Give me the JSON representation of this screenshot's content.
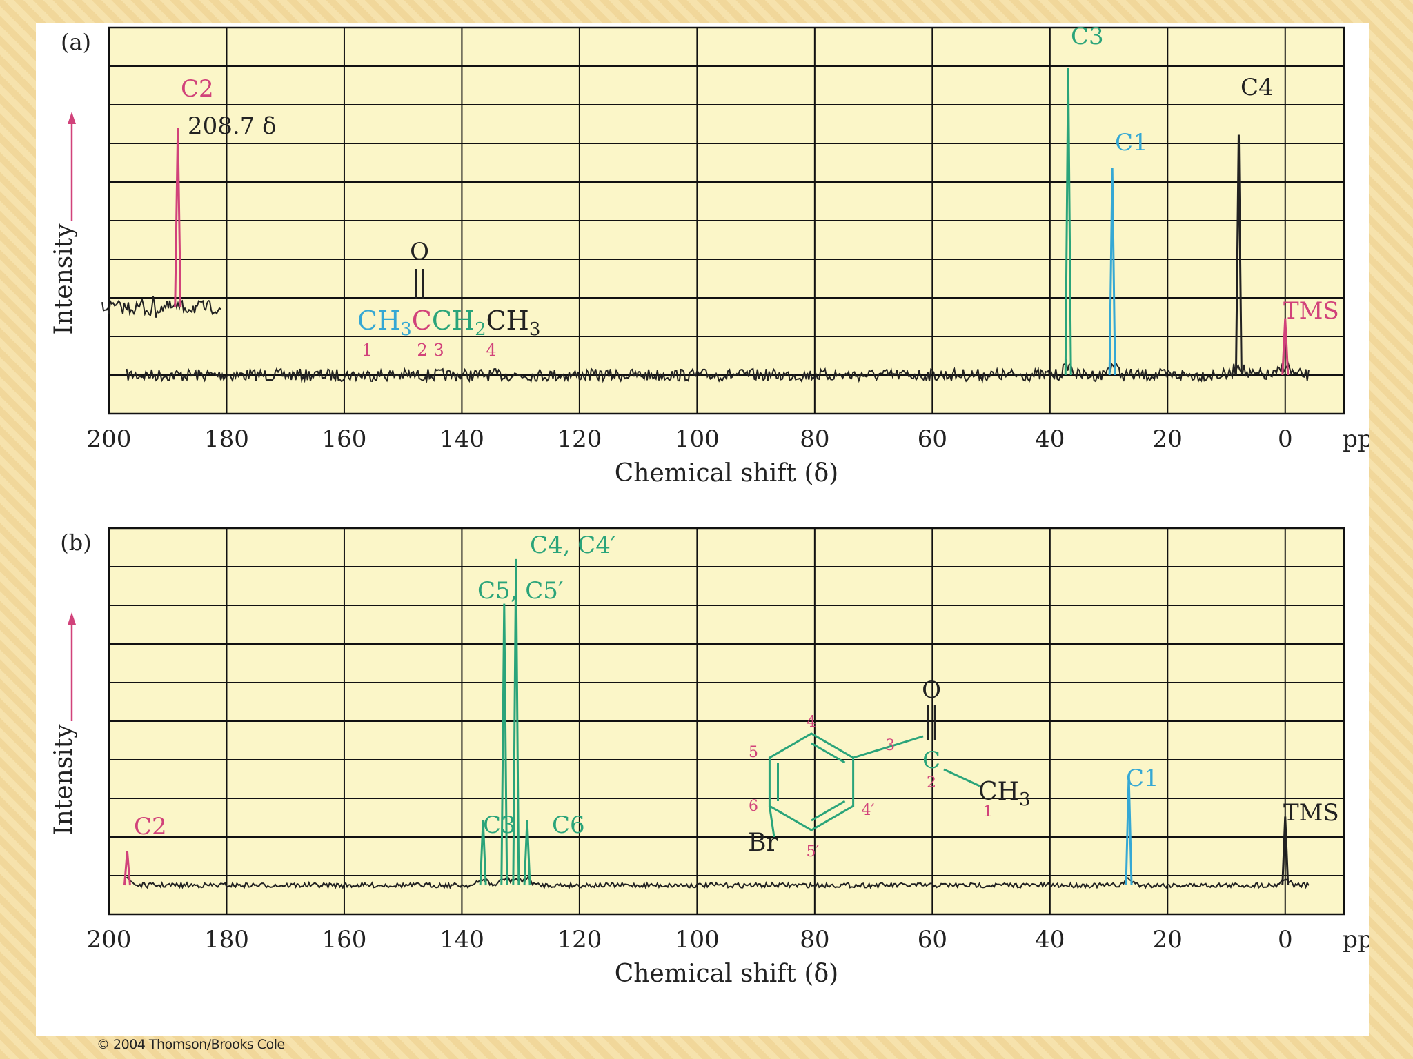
{
  "copyright": "© 2004 Thomson/Brooks Cole",
  "colors": {
    "plot_bg": "#fbf6c8",
    "grid": "#111111",
    "c_pink": "#d1427a",
    "c_cyan": "#35a8d4",
    "c_green": "#2aa47a",
    "trace": "#222222"
  },
  "chart_data": [
    {
      "panel": "(a)",
      "type": "line",
      "xlabel": "Chemical shift (δ)",
      "ylabel": "Intensity",
      "xunit": "ppm",
      "xlim": [
        200,
        -10
      ],
      "xticks": [
        200,
        180,
        160,
        140,
        120,
        100,
        80,
        60,
        40,
        20,
        0
      ],
      "grid": true,
      "peaks": [
        {
          "label": "C2",
          "shift": 208.7,
          "intensity": 0.74,
          "color": "#d1427a",
          "annotation": "208.7 δ",
          "inset": true
        },
        {
          "label": "C3",
          "shift": 36.9,
          "intensity": 0.92,
          "color": "#2aa47a"
        },
        {
          "label": "C1",
          "shift": 29.4,
          "intensity": 0.62,
          "color": "#35a8d4"
        },
        {
          "label": "C4",
          "shift": 7.9,
          "intensity": 0.72,
          "color": "#222222"
        },
        {
          "label": "TMS",
          "shift": 0,
          "intensity": 0.17,
          "color": "#d1427a"
        }
      ],
      "structure": {
        "top": "O",
        "formula_parts": [
          {
            "text": "CH",
            "color": "#35a8d4"
          },
          {
            "text": "3",
            "sub": true,
            "color": "#35a8d4"
          },
          {
            "text": "C",
            "color": "#d1427a"
          },
          {
            "text": "CH",
            "color": "#2aa47a"
          },
          {
            "text": "2",
            "sub": true,
            "color": "#2aa47a"
          },
          {
            "text": "CH",
            "color": "#222222"
          },
          {
            "text": "3",
            "sub": true,
            "color": "#222222"
          }
        ],
        "numbers": [
          "1",
          "2",
          "3",
          "4"
        ]
      }
    },
    {
      "panel": "(b)",
      "type": "line",
      "xlabel": "Chemical shift (δ)",
      "ylabel": "Intensity",
      "xunit": "ppm",
      "xlim": [
        200,
        -10
      ],
      "xticks": [
        200,
        180,
        160,
        140,
        120,
        100,
        80,
        60,
        40,
        20,
        0
      ],
      "grid": true,
      "peaks": [
        {
          "label": "C2",
          "shift": 196.9,
          "intensity": 0.1,
          "color": "#d1427a"
        },
        {
          "label": "C3",
          "shift": 136.4,
          "intensity": 0.19,
          "color": "#2aa47a"
        },
        {
          "label": "C5, C5′",
          "shift": 132.8,
          "intensity": 0.82,
          "color": "#2aa47a"
        },
        {
          "label": "C4, C4′",
          "shift": 130.8,
          "intensity": 0.95,
          "color": "#2aa47a"
        },
        {
          "label": "C6",
          "shift": 128.9,
          "intensity": 0.19,
          "color": "#2aa47a"
        },
        {
          "label": "C1",
          "shift": 26.6,
          "intensity": 0.32,
          "color": "#35a8d4"
        },
        {
          "label": "TMS",
          "shift": 0,
          "intensity": 0.2,
          "color": "#222222"
        }
      ],
      "structure": {
        "top": "O",
        "carbonyl": "C",
        "methyl": "CH",
        "methyl_sub": "3",
        "substituent": "Br",
        "numbers": [
          "1",
          "2",
          "3",
          "4",
          "4′",
          "5",
          "5′",
          "6"
        ]
      }
    }
  ]
}
